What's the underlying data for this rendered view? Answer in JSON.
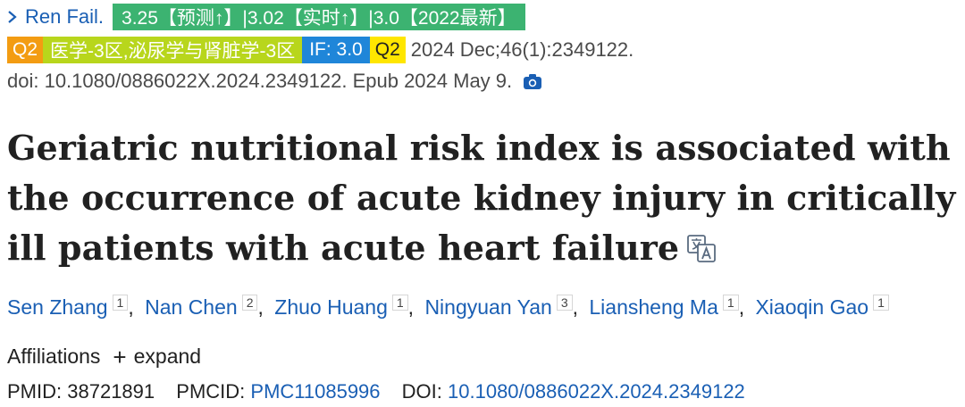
{
  "journal": {
    "name": "Ren Fail.",
    "badges": {
      "if_predict": "3.25【预测↑】|3.02【实时↑】|3.0【2022最新】",
      "quartile": "Q2",
      "cas_zone": "医学-3区,泌尿学与肾脏学-3区",
      "impact_factor": "IF: 3.0",
      "jcr_quartile": "Q2"
    },
    "citation": "2024 Dec;46(1):2349122.",
    "doi_epub": "doi: 10.1080/0886022X.2024.2349122. Epub 2024 May 9."
  },
  "article": {
    "title": "Geriatric nutritional risk index is associated with the occurrence of acute kidney injury in critically ill patients with acute heart failure"
  },
  "authors": [
    {
      "name": "Sen Zhang",
      "aff": "1"
    },
    {
      "name": "Nan Chen",
      "aff": "2"
    },
    {
      "name": "Zhuo Huang",
      "aff": "1"
    },
    {
      "name": "Ningyuan Yan",
      "aff": "3"
    },
    {
      "name": "Liansheng Ma",
      "aff": "1"
    },
    {
      "name": "Xiaoqin Gao",
      "aff": "1"
    }
  ],
  "affiliations": {
    "label": "Affiliations",
    "expand_label": "expand"
  },
  "identifiers": {
    "pmid_label": "PMID:",
    "pmid": "38721891",
    "pmcid_label": "PMCID:",
    "pmcid": "PMC11085996",
    "doi_label": "DOI:",
    "doi": "10.1080/0886022X.2024.2349122"
  },
  "colors": {
    "link": "#1a5fb4",
    "badge_green": "#3cb371",
    "badge_orange": "#f39c12",
    "badge_lime": "#b8d61c",
    "badge_blue": "#1f86d9",
    "badge_yellow": "#ffe600"
  },
  "icons": [
    "chevron-right-icon",
    "camera-icon",
    "translate-icon",
    "plus-icon"
  ]
}
